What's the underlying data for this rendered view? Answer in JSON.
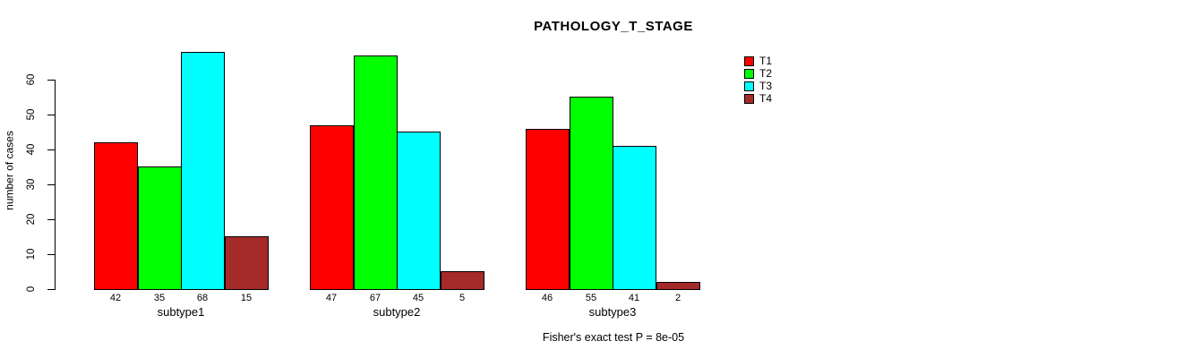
{
  "title": "PATHOLOGY_T_STAGE",
  "chart_data": {
    "type": "bar",
    "grouped": true,
    "title": "PATHOLOGY_T_STAGE",
    "ylabel": "number of cases",
    "xlabel": "",
    "categories": [
      "subtype1",
      "subtype2",
      "subtype3"
    ],
    "series": [
      {
        "name": "T1",
        "color": "#FF0000",
        "values": [
          42,
          47,
          46
        ]
      },
      {
        "name": "T2",
        "color": "#00FF00",
        "values": [
          35,
          67,
          55
        ]
      },
      {
        "name": "T3",
        "color": "#00FFFF",
        "values": [
          68,
          45,
          41
        ]
      },
      {
        "name": "T4",
        "color": "#A52A2A",
        "values": [
          15,
          5,
          2
        ]
      }
    ],
    "bar_value_labels": [
      [
        "42",
        "35",
        "68",
        "15"
      ],
      [
        "47",
        "67",
        "45",
        "5"
      ],
      [
        "46",
        "55",
        "41",
        "2"
      ]
    ],
    "yticks": [
      "0",
      "10",
      "20",
      "30",
      "40",
      "50",
      "60"
    ],
    "ylim": [
      0,
      70
    ],
    "grid": false,
    "legend_position": "top-right",
    "legend_entries": [
      "T1",
      "T2",
      "T3",
      "T4"
    ],
    "annotation": "Fisher's exact test P = 8e-05"
  }
}
